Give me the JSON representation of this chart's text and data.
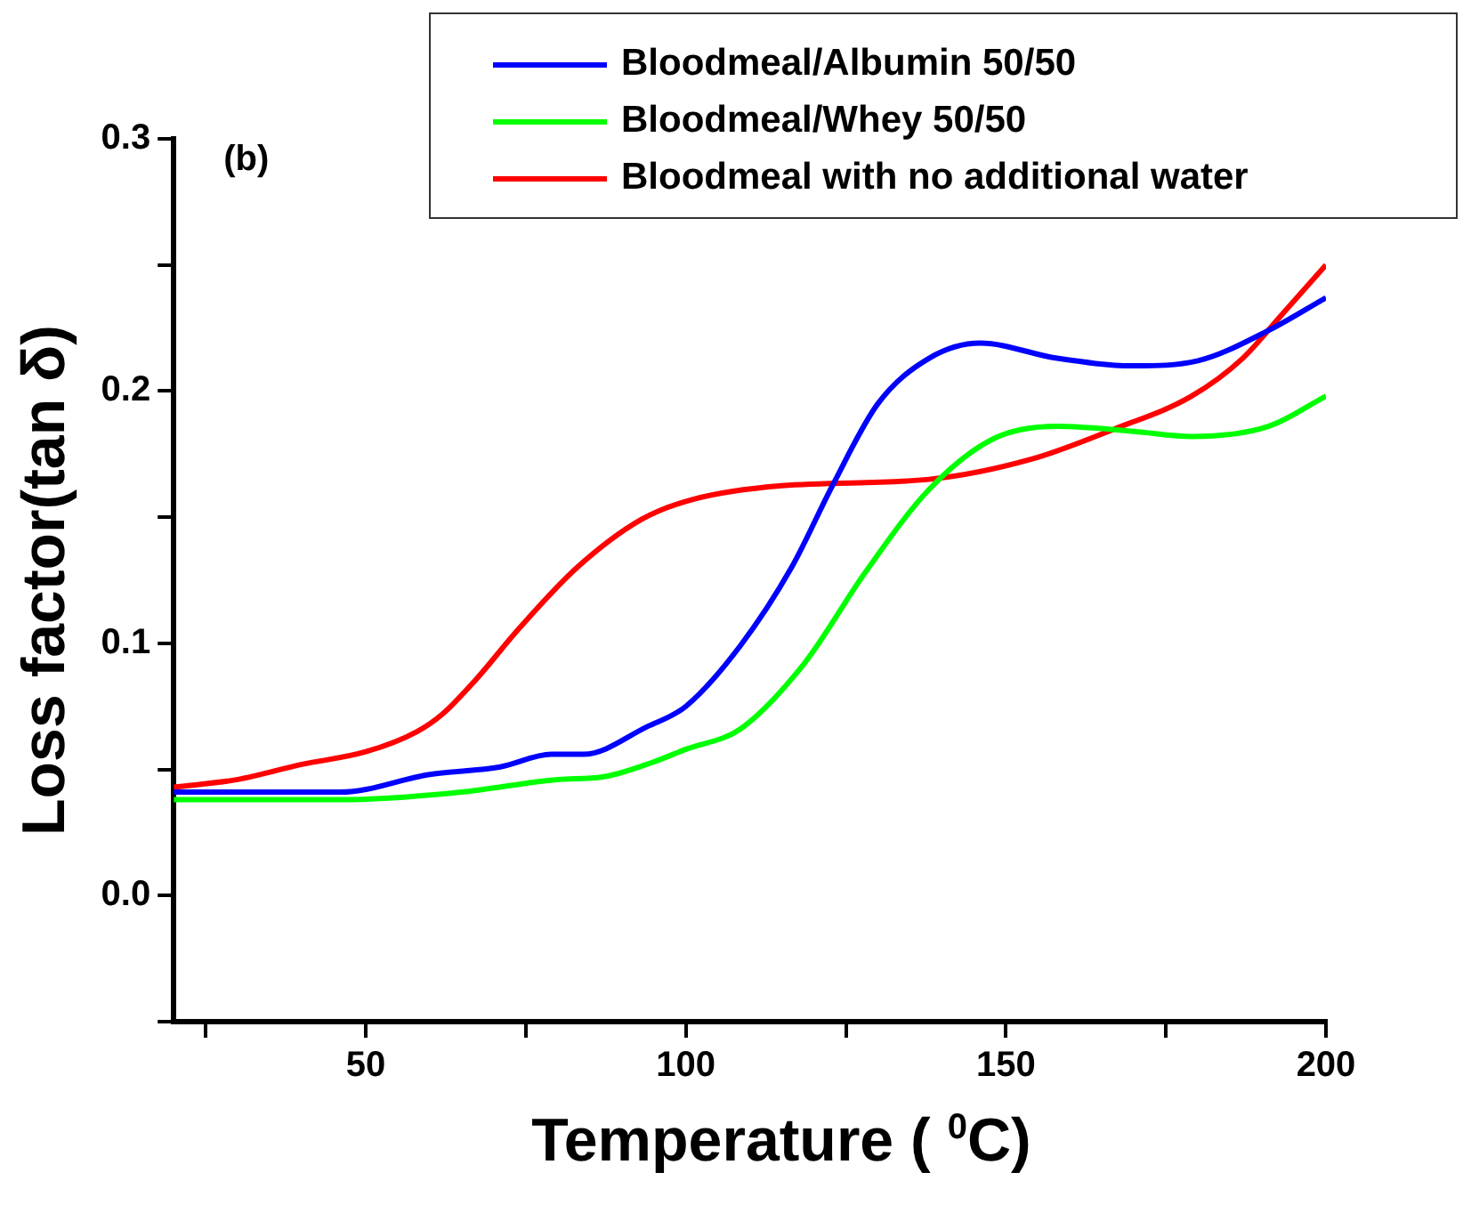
{
  "chart_data": {
    "type": "line",
    "xlabel": "Temperature ( $^{0}$C)",
    "ylabel": "Loss factor(tan δ)",
    "annotations": [
      "(b)"
    ],
    "xlim": [
      20,
      200
    ],
    "ylim": [
      -0.05,
      0.3
    ],
    "xticks": [
      {
        "value": 25,
        "label": null
      },
      50,
      {
        "value": 75,
        "label": null
      },
      100,
      {
        "value": 125,
        "label": null
      },
      150,
      {
        "value": 175,
        "label": null
      },
      200
    ],
    "yticks": [
      {
        "value": -0.05,
        "label": null
      },
      "0.0",
      {
        "value": 0.05,
        "label": null
      },
      0.1,
      {
        "value": 0.15,
        "label": null
      },
      0.2,
      {
        "value": 0.25,
        "label": null
      },
      0.3
    ],
    "grid": false,
    "legend": "top right",
    "marker": "none",
    "line_style": "solid",
    "series": [
      {
        "name": "Bloodmeal/Albumin 50/50",
        "color": "#0000ff",
        "x": [
          20,
          46,
          60,
          71,
          79,
          84,
          94,
          100,
          108.5,
          116.5,
          123,
          130,
          138,
          146,
          158,
          170,
          180,
          191,
          200
        ],
        "values": [
          0.041,
          0.041,
          0.048,
          0.051,
          0.056,
          0.056,
          0.067,
          0.075,
          0.099,
          0.13,
          0.163,
          0.195,
          0.213,
          0.219,
          0.213,
          0.21,
          0.212,
          0.224,
          0.237
        ]
      },
      {
        "name": "Bloodmeal/Whey 50/50",
        "color": "#00ff00",
        "x": [
          20,
          46,
          65,
          80,
          87,
          95,
          100,
          108.5,
          118.5,
          128,
          138,
          148,
          158,
          170,
          179,
          191,
          200
        ],
        "values": [
          0.038,
          0.038,
          0.041,
          0.046,
          0.047,
          0.053,
          0.058,
          0.066,
          0.092,
          0.128,
          0.161,
          0.181,
          0.186,
          0.184,
          0.182,
          0.186,
          0.198
        ]
      },
      {
        "name": "Bloodmeal with no additional water",
        "color": "#ff0000",
        "x": [
          20,
          30,
          40,
          50,
          58,
          62,
          67,
          74,
          83,
          93,
          101,
          115,
          138,
          154,
          167,
          179,
          187,
          193,
          200
        ],
        "values": [
          0.043,
          0.046,
          0.052,
          0.057,
          0.065,
          0.072,
          0.085,
          0.106,
          0.13,
          0.149,
          0.157,
          0.1625,
          0.165,
          0.173,
          0.185,
          0.198,
          0.213,
          0.23,
          0.25
        ]
      }
    ]
  }
}
